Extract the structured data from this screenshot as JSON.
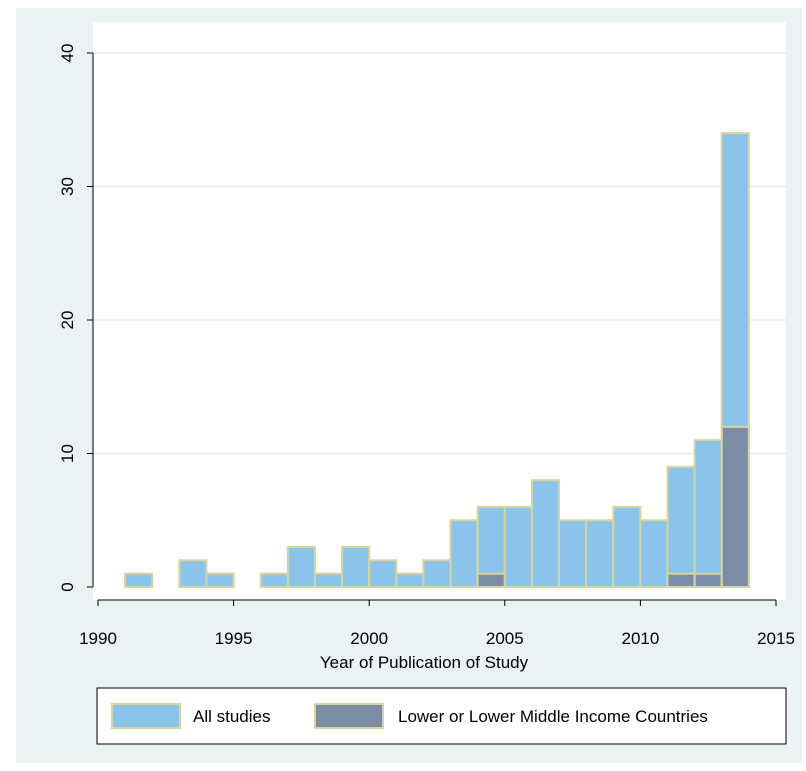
{
  "chart_data": {
    "type": "bar",
    "xlabel": "Year of Publication of Study",
    "ylabel": "",
    "xlim": [
      1990,
      2015
    ],
    "ylim": [
      0,
      40
    ],
    "x_ticks": [
      "1990",
      "1995",
      "2000",
      "2005",
      "2010",
      "2015"
    ],
    "y_ticks": [
      "0",
      "10",
      "20",
      "30",
      "40"
    ],
    "bin_width": 1,
    "categories": [
      1991,
      1993,
      1994,
      1996,
      1997,
      1998,
      1999,
      2000,
      2001,
      2002,
      2003,
      2004,
      2005,
      2006,
      2007,
      2008,
      2009,
      2010,
      2011,
      2012,
      2013
    ],
    "series": [
      {
        "name": "All studies",
        "color": "#8ac4ea",
        "values": [
          1,
          2,
          1,
          1,
          3,
          1,
          3,
          2,
          1,
          2,
          5,
          6,
          6,
          8,
          5,
          5,
          6,
          5,
          9,
          11,
          34
        ]
      },
      {
        "name": "Lower or Lower Middle Income Countries",
        "color": "#7b8ea5",
        "values": [
          0,
          0,
          0,
          0,
          0,
          0,
          0,
          0,
          0,
          0,
          0,
          1,
          0,
          0,
          0,
          0,
          0,
          0,
          1,
          1,
          12
        ]
      }
    ],
    "bar_outline_color": "#d8d4a0",
    "grid": true,
    "legend_position": "bottom",
    "background": "#eaf2f3",
    "plot_background": "#ffffff",
    "grid_color": "#e4eef0"
  }
}
